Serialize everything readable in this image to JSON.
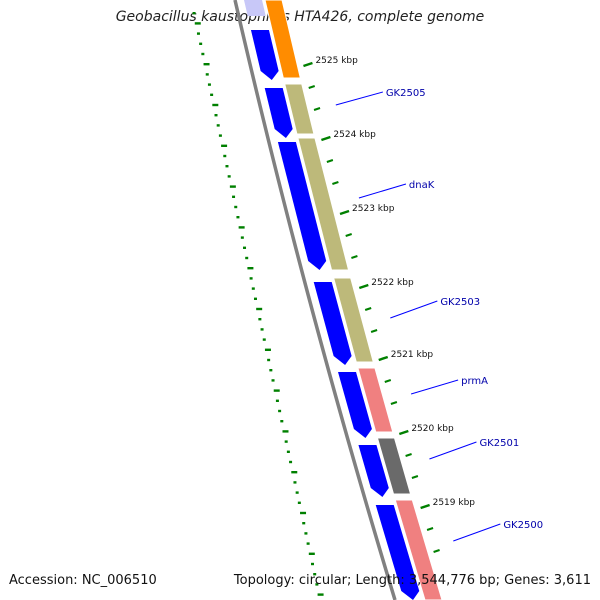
{
  "title": "Geobacillus kaustophilus HTA426, complete genome",
  "footer": {
    "accession": "Accession: NC_006510",
    "summary": "Topology: circular; Length: 3,544,776 bp; Genes: 3,611"
  },
  "colors": {
    "backbone": "#808080",
    "feature_blue": "#0000ff",
    "feature_olive": "#bdb97a",
    "feature_pink": "#f08080",
    "feature_gray": "#6a6a6a",
    "feature_orange": "#ff8c00",
    "tick_green": "#008000",
    "label_blue": "#0000aa"
  },
  "ticks": [
    {
      "label": "2525 kbp",
      "kbp": 2525
    },
    {
      "label": "2524 kbp",
      "kbp": 2524
    },
    {
      "label": "2523 kbp",
      "kbp": 2523
    },
    {
      "label": "2522 kbp",
      "kbp": 2522
    },
    {
      "label": "2521 kbp",
      "kbp": 2521
    },
    {
      "label": "2520 kbp",
      "kbp": 2520
    },
    {
      "label": "2519 kbp",
      "kbp": 2519
    }
  ],
  "genes": [
    {
      "label": "GK2505"
    },
    {
      "label": "dnaK"
    },
    {
      "label": "GK2503"
    },
    {
      "label": "prmA"
    },
    {
      "label": "GK2501"
    },
    {
      "label": "GK2500"
    }
  ]
}
